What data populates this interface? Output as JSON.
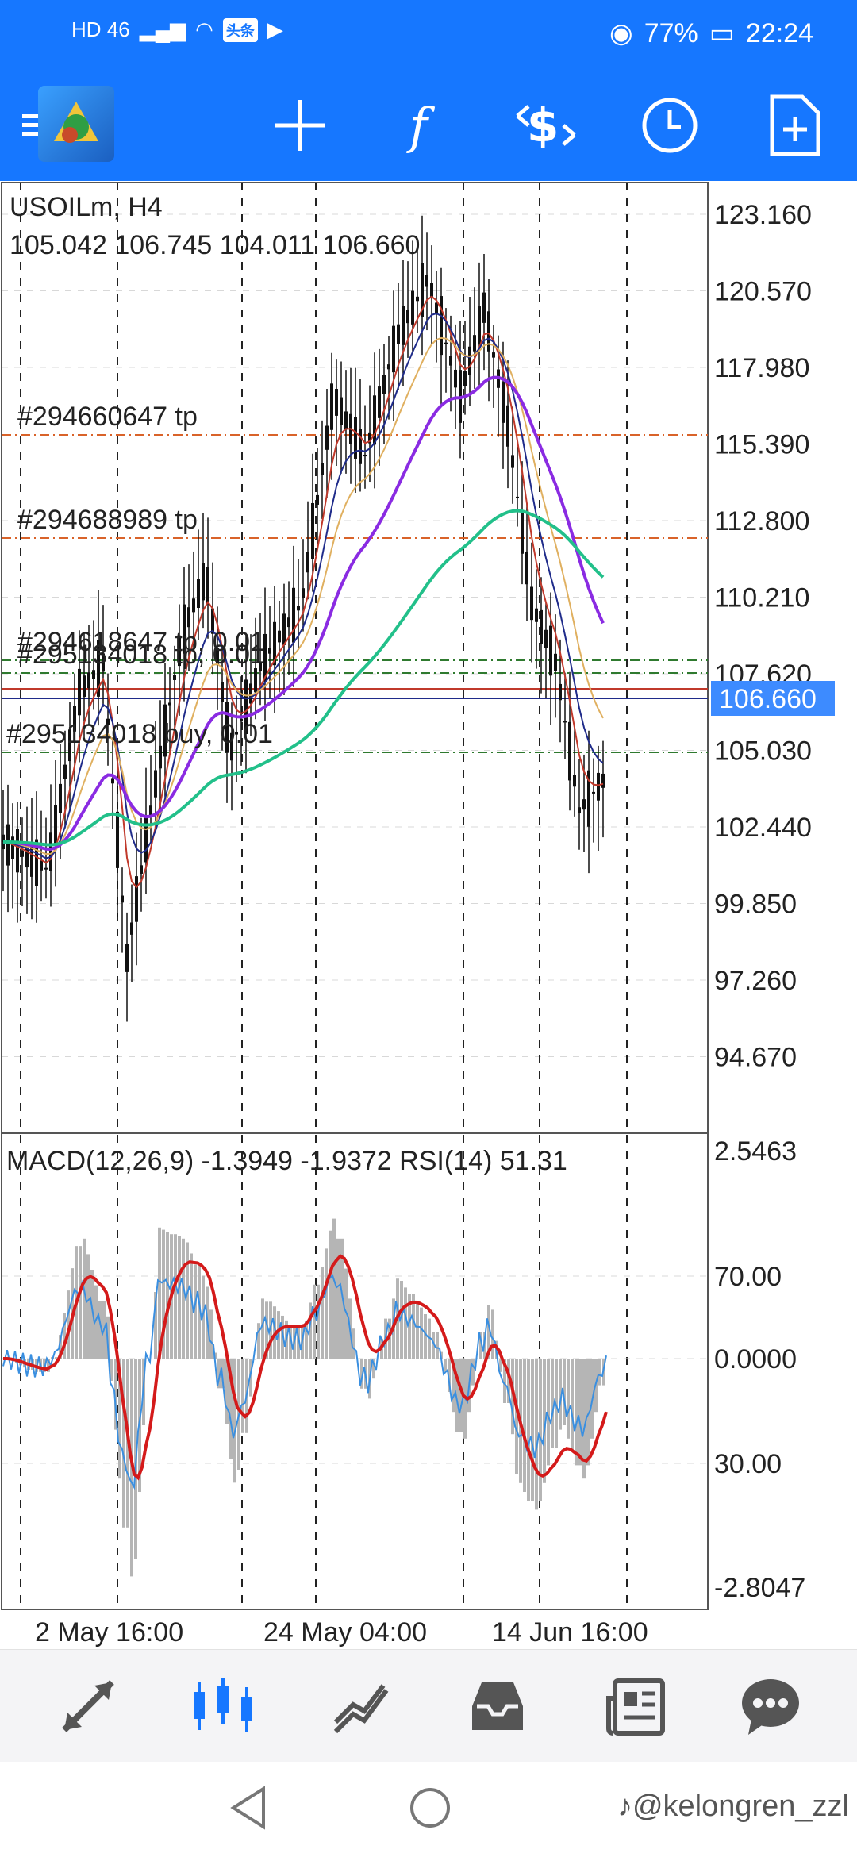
{
  "status_bar": {
    "left_text": "HD 46",
    "badge_text": "头条",
    "eye_battery": "77%",
    "time": "22:24"
  },
  "toolbar": {
    "icons": [
      "menu-icon",
      "app-logo",
      "crosshair-icon",
      "function-icon",
      "trade-dollar-icon",
      "clock-icon",
      "new-document-icon"
    ]
  },
  "chart": {
    "symbol_title": "USOILm, H4",
    "ohlc": "105.042 106.745 104.011 106.660",
    "current_price": "106.660",
    "price_ticks": [
      "123.160",
      "120.570",
      "117.980",
      "115.390",
      "112.800",
      "110.210",
      "107.620",
      "105.030",
      "102.440",
      "99.850",
      "97.260",
      "94.670"
    ],
    "orders": [
      {
        "label": "#294660647 tp"
      },
      {
        "label": "#294688989 tp"
      },
      {
        "label": "#294618647 tp, 0.01"
      },
      {
        "label": "#295134018 tp, 0.01"
      },
      {
        "label": "#295134018 buy, 0.01"
      }
    ],
    "indicator_title": "MACD(12,26,9) -1.3949 -1.9372 RSI(14) 51.31",
    "indicator_ticks": [
      "2.5463",
      "70.00",
      "0.0000",
      "30.00",
      "-2.8047"
    ],
    "date_labels": [
      "2 May 16:00",
      "24 May 04:00",
      "14 Jun 16:00"
    ]
  },
  "bottom_nav": {
    "items": [
      "quotes-icon",
      "chart-icon",
      "trade-icon",
      "history-icon",
      "news-icon",
      "chat-icon"
    ]
  },
  "watermark": "@kelongren_zzl",
  "colors": {
    "accent": "#1677ff",
    "price_box": "#3d8bff",
    "ma_slow": "#22c08a",
    "ma_mid": "#8a2be2",
    "macd_signal": "#d41a1a",
    "rsi": "#3a8fe0"
  }
}
